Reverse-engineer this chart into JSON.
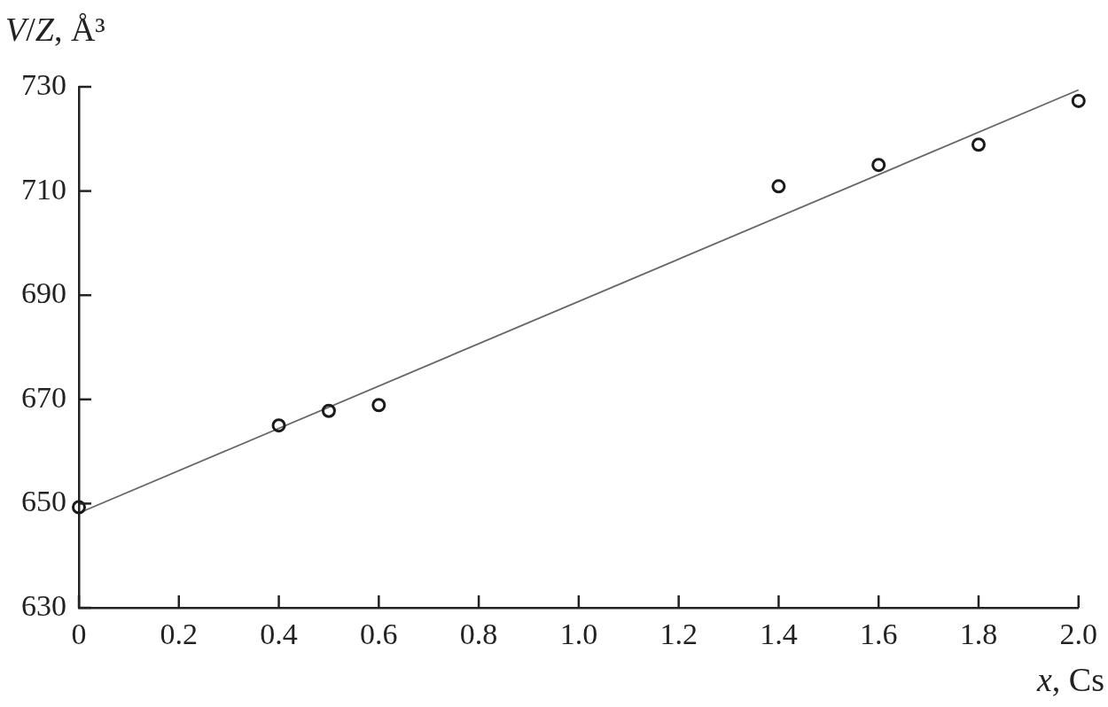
{
  "chart_data": {
    "type": "scatter",
    "xlabel": "x, Cs",
    "ylabel": "V/Z, Å³",
    "xlim": [
      0,
      2.0
    ],
    "ylim": [
      630,
      730
    ],
    "xticks": [
      0,
      0.2,
      0.4,
      0.6,
      0.8,
      {
        "value": 1,
        "label": "1.0"
      },
      1.2,
      1.4,
      1.6,
      1.8,
      {
        "value": 2,
        "label": "2.0"
      }
    ],
    "yticks": [
      630,
      650,
      670,
      690,
      710,
      730
    ],
    "marker": "circle",
    "series": [
      {
        "color": "#1a1a1a",
        "x": [
          0,
          0.4,
          0.5,
          0.6,
          1.4,
          1.6,
          1.8,
          2.0
        ],
        "values": [
          649.3,
          665,
          667.8,
          668.9,
          710.9,
          715,
          718.9,
          727.3
        ]
      },
      {
        "type": "line",
        "color": "#666666",
        "marker": "none",
        "x": [
          0,
          2.0
        ],
        "values": [
          648.2,
          729.4
        ]
      }
    ]
  }
}
